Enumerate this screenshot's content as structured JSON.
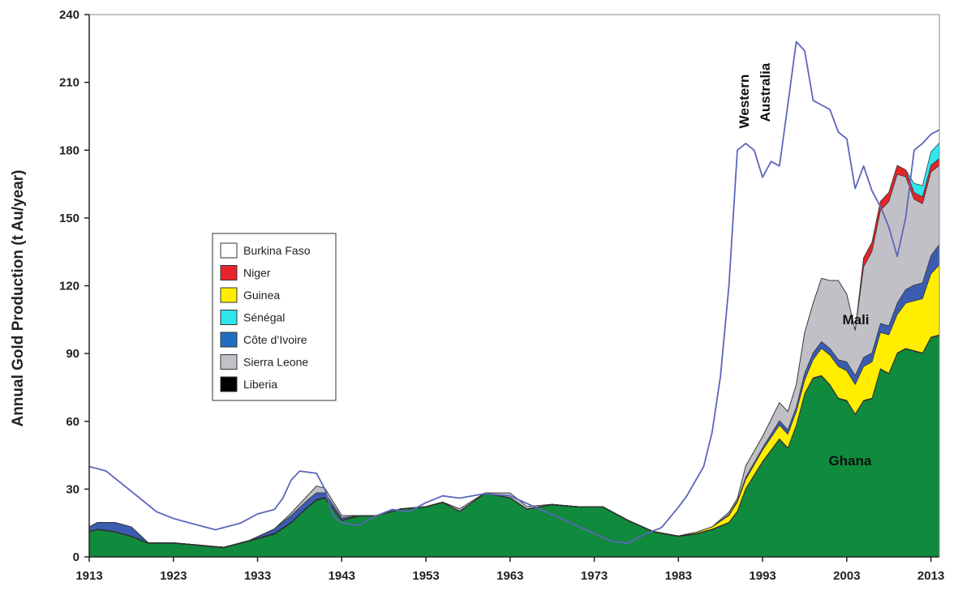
{
  "chart_data": {
    "type": "area",
    "ylabel": "Annual Gold Production (t Au/year)",
    "xlabel": "",
    "xlim": [
      1913,
      2014
    ],
    "ylim": [
      0,
      240
    ],
    "xticks": [
      1913,
      1923,
      1933,
      1943,
      1953,
      1963,
      1973,
      1983,
      1993,
      2003,
      2013
    ],
    "yticks": [
      0,
      30,
      60,
      90,
      120,
      150,
      180,
      210,
      240
    ],
    "stacked": true,
    "x": [
      1913,
      1914,
      1916,
      1918,
      1920,
      1923,
      1926,
      1929,
      1932,
      1935,
      1937,
      1939,
      1940,
      1941,
      1943,
      1945,
      1947,
      1950,
      1953,
      1955,
      1957,
      1960,
      1963,
      1965,
      1968,
      1971,
      1974,
      1977,
      1980,
      1983,
      1985,
      1987,
      1989,
      1990,
      1991,
      1993,
      1995,
      1996,
      1997,
      1998,
      1999,
      2000,
      2001,
      2002,
      2003,
      2004,
      2005,
      2006,
      2007,
      2008,
      2009,
      2010,
      2011,
      2012,
      2013,
      2014
    ],
    "series": [
      {
        "name": "Ghana",
        "color": "#108a3c",
        "values": [
          11,
          12,
          11,
          9,
          6,
          6,
          5,
          4,
          7,
          10,
          15,
          22,
          25,
          26,
          16,
          18,
          18,
          21,
          22,
          24,
          20,
          28,
          26,
          21,
          23,
          22,
          22,
          16,
          11,
          9,
          10,
          12,
          15,
          20,
          30,
          42,
          52,
          48,
          58,
          72,
          79,
          80,
          76,
          70,
          69,
          63,
          69,
          70,
          83,
          81,
          90,
          92,
          91,
          90,
          97,
          98
        ]
      },
      {
        "name": "Liberia",
        "color": "#000000",
        "values": [
          0.3,
          0.3,
          0.3,
          0.3,
          0.3,
          0.3,
          0.3,
          0.3,
          0.3,
          0.4,
          0.4,
          0.4,
          0.4,
          0.4,
          0.3,
          0.3,
          0.3,
          0.3,
          0.3,
          0.3,
          0.3,
          0.3,
          0.3,
          0.3,
          0.3,
          0.3,
          0.3,
          0.3,
          0.3,
          0.3,
          0.3,
          0.3,
          0.3,
          0.3,
          0.3,
          0.3,
          0.3,
          0.3,
          0.3,
          0.3,
          0.3,
          0.3,
          0.3,
          0.3,
          0.3,
          0.3,
          0.3,
          0.3,
          0.3,
          0.3,
          0.3,
          0.3,
          0.3,
          0.3,
          0.3,
          0.3
        ]
      },
      {
        "name": "Guinea",
        "color": "#ffee00",
        "values": [
          0,
          0,
          0,
          0,
          0,
          0,
          0,
          0,
          0,
          0,
          0,
          0,
          0,
          0,
          0,
          0,
          0,
          0,
          0,
          0,
          0,
          0,
          0,
          0,
          0,
          0,
          0,
          0,
          0,
          0,
          0.5,
          1,
          3,
          4,
          4,
          5,
          6,
          6,
          6,
          6,
          8,
          12,
          13,
          14,
          13,
          13,
          15,
          16,
          16,
          17,
          17,
          20,
          22,
          24,
          28,
          31
        ]
      },
      {
        "name": "Côte d'Ivoire",
        "color": "#3b5cb0",
        "values": [
          2,
          3,
          4,
          4,
          0,
          0,
          0,
          0,
          0,
          2,
          3,
          3,
          3,
          2,
          1,
          0,
          0,
          0,
          0,
          0,
          0,
          0,
          0,
          0,
          0,
          0,
          0,
          0,
          0,
          0,
          0,
          0,
          0.5,
          0.5,
          1,
          1,
          2,
          2,
          2,
          3,
          3,
          3,
          3,
          3,
          4,
          4,
          4,
          4,
          4,
          4,
          5,
          6,
          7,
          7,
          8,
          9
        ]
      },
      {
        "name": "Sierra Leone",
        "color": "#c0c0c6",
        "values": [
          0,
          0,
          0,
          0,
          0,
          0,
          0,
          0,
          0,
          0,
          1,
          2,
          3,
          2,
          1,
          0,
          0,
          0,
          0,
          0,
          1,
          0,
          2,
          1,
          0,
          0,
          0,
          0,
          0,
          0,
          0,
          0,
          1,
          1,
          5,
          5,
          8,
          8,
          10,
          18,
          22,
          28,
          30,
          35,
          30,
          20,
          40,
          45,
          50,
          55,
          57,
          50,
          38,
          35,
          37,
          35
        ]
      },
      {
        "name": "Niger",
        "color": "#e8242a",
        "values": [
          0,
          0,
          0,
          0,
          0,
          0,
          0,
          0,
          0,
          0,
          0,
          0,
          0,
          0,
          0,
          0,
          0,
          0,
          0,
          0,
          0,
          0,
          0,
          0,
          0,
          0,
          0,
          0,
          0,
          0,
          0,
          0,
          0,
          0,
          0,
          0,
          0,
          0,
          0,
          0,
          0,
          0,
          0,
          0,
          0,
          0,
          4,
          4,
          4,
          4,
          4,
          3,
          3,
          3,
          3,
          3
        ]
      },
      {
        "name": "Sénégal",
        "color": "#2ee6ec",
        "values": [
          0,
          0,
          0,
          0,
          0,
          0,
          0,
          0,
          0,
          0,
          0,
          0,
          0,
          0,
          0,
          0,
          0,
          0,
          0,
          0,
          0,
          0,
          0,
          0,
          0,
          0,
          0,
          0,
          0,
          0,
          0,
          0,
          0,
          0,
          0,
          0,
          0,
          0,
          0,
          0,
          0,
          0,
          0,
          0,
          0,
          0,
          0,
          0,
          0,
          0,
          0,
          0,
          4,
          5,
          6,
          7
        ]
      }
    ],
    "reference_line": {
      "name": "Western Australia",
      "color": "#5c66bb",
      "x": [
        1913,
        1915,
        1917,
        1919,
        1921,
        1923,
        1925,
        1928,
        1931,
        1933,
        1935,
        1936,
        1937,
        1938,
        1940,
        1941,
        1942,
        1943,
        1945,
        1947,
        1949,
        1951,
        1953,
        1955,
        1957,
        1960,
        1963,
        1966,
        1969,
        1972,
        1975,
        1977,
        1979,
        1981,
        1983,
        1984,
        1986,
        1987,
        1988,
        1989,
        1990,
        1991,
        1992,
        1993,
        1994,
        1995,
        1996,
        1997,
        1998,
        1999,
        2000,
        2001,
        2002,
        2003,
        2004,
        2005,
        2006,
        2007,
        2008,
        2009,
        2010,
        2011,
        2012,
        2013,
        2014
      ],
      "values": [
        40,
        38,
        32,
        26,
        20,
        17,
        15,
        12,
        15,
        19,
        21,
        26,
        34,
        38,
        37,
        30,
        18,
        15,
        14,
        18,
        21,
        20,
        24,
        27,
        26,
        28,
        27,
        22,
        17,
        12,
        7,
        6,
        10,
        13,
        22,
        27,
        40,
        55,
        80,
        120,
        180,
        183,
        180,
        168,
        175,
        173,
        200,
        228,
        224,
        202,
        200,
        198,
        188,
        185,
        163,
        173,
        162,
        155,
        146,
        133,
        150,
        180,
        183,
        187,
        189
      ]
    },
    "annotations": {
      "western_australia_line1": "Western",
      "western_australia_line2": "Australia",
      "mali": "Mali",
      "ghana": "Ghana"
    },
    "legend": {
      "placement": "left-middle",
      "entries": [
        {
          "label": "Burkina Faso",
          "color": "#ffffff"
        },
        {
          "label": "Niger",
          "color": "#e8242a"
        },
        {
          "label": "Guinea",
          "color": "#ffee00"
        },
        {
          "label": "Sénégal",
          "color": "#2ee6ec"
        },
        {
          "label": "Côte d’Ivoire",
          "color": "#1f6ec2"
        },
        {
          "label": "Sierra Leone",
          "color": "#c0c0c6"
        },
        {
          "label": "Liberia",
          "color": "#000000"
        }
      ]
    },
    "grid": false
  }
}
